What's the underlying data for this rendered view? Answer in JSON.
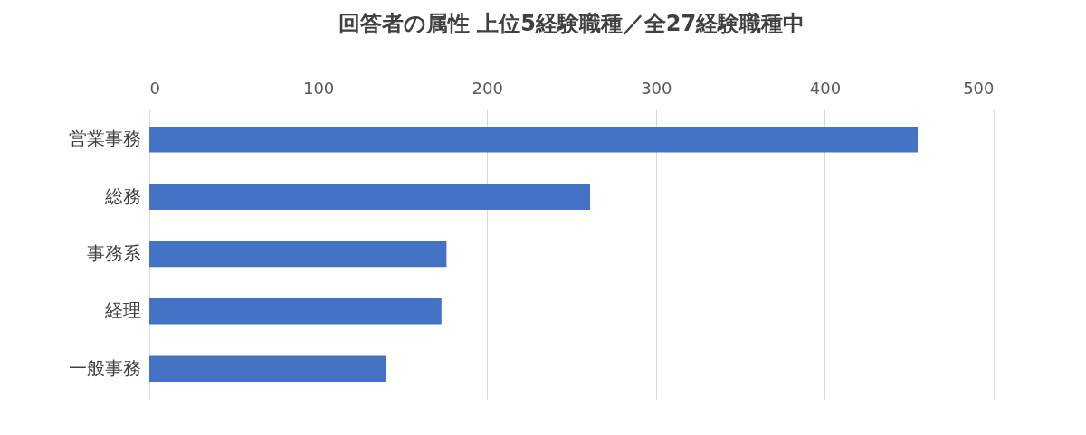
{
  "chart_data": {
    "type": "bar",
    "orientation": "horizontal",
    "title": "回答者の属性 上位5経験職種／全27経験職種中",
    "categories": [
      "営業事務",
      "総務",
      "事務系",
      "経理",
      "一般事務"
    ],
    "values": [
      455,
      261,
      176,
      173,
      140
    ],
    "color": "#4472c4",
    "xlim": [
      0,
      500
    ],
    "xticks": [
      0,
      100,
      200,
      300,
      400,
      500
    ],
    "grid": "x"
  }
}
